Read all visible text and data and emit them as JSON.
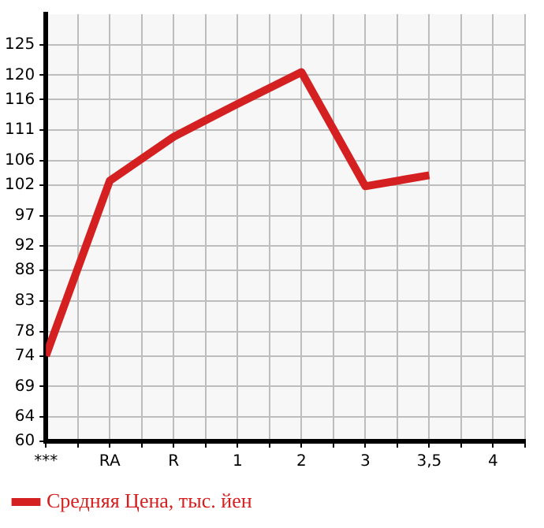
{
  "chart_data": {
    "type": "line",
    "categories": [
      "***",
      "RA",
      "R",
      "1",
      "2",
      "3",
      "3,5",
      "4"
    ],
    "series": [
      {
        "name": "Средняя Цена, тыс. йен",
        "color": "#d42020",
        "values": [
          74,
          102.7,
          109.9,
          115.3,
          120.5,
          101.8,
          103.6,
          null
        ]
      }
    ],
    "ylim": [
      60,
      130
    ],
    "yticks": [
      60,
      64,
      69,
      74,
      78,
      83,
      88,
      92,
      97,
      102,
      106,
      111,
      116,
      120,
      125
    ],
    "grid": true,
    "legend": "bottom left",
    "marker": "none",
    "line_style": "solid"
  }
}
